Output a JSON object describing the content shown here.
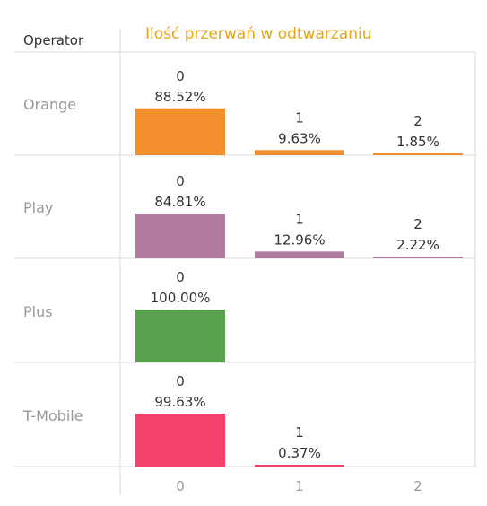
{
  "chart_data": {
    "type": "bar",
    "title": "Ilość przerwań w odtwarzaniu",
    "row_header": "Operator",
    "categories": [
      "0",
      "1",
      "2"
    ],
    "ylim": [
      0,
      100
    ],
    "grid": true,
    "series": [
      {
        "name": "Orange",
        "color": "#F28E2B",
        "values": [
          88.52,
          9.63,
          1.85
        ],
        "labels": [
          "88.52%",
          "9.63%",
          "1.85%"
        ]
      },
      {
        "name": "Play",
        "color": "#B07AA1",
        "values": [
          84.81,
          12.96,
          2.22
        ],
        "labels": [
          "84.81%",
          "12.96%",
          "2.22%"
        ]
      },
      {
        "name": "Plus",
        "color": "#59A14F",
        "values": [
          100.0,
          null,
          null
        ],
        "labels": [
          "100.00%",
          null,
          null
        ]
      },
      {
        "name": "T-Mobile",
        "color": "#F1416C",
        "values": [
          99.63,
          0.37,
          null
        ],
        "labels": [
          "99.63%",
          "0.37%",
          null
        ]
      }
    ]
  },
  "colors": {
    "title": "#E8A317",
    "axis_text": "#9A9A9A",
    "header_text": "#333333",
    "grid": "#D9D9D9"
  }
}
